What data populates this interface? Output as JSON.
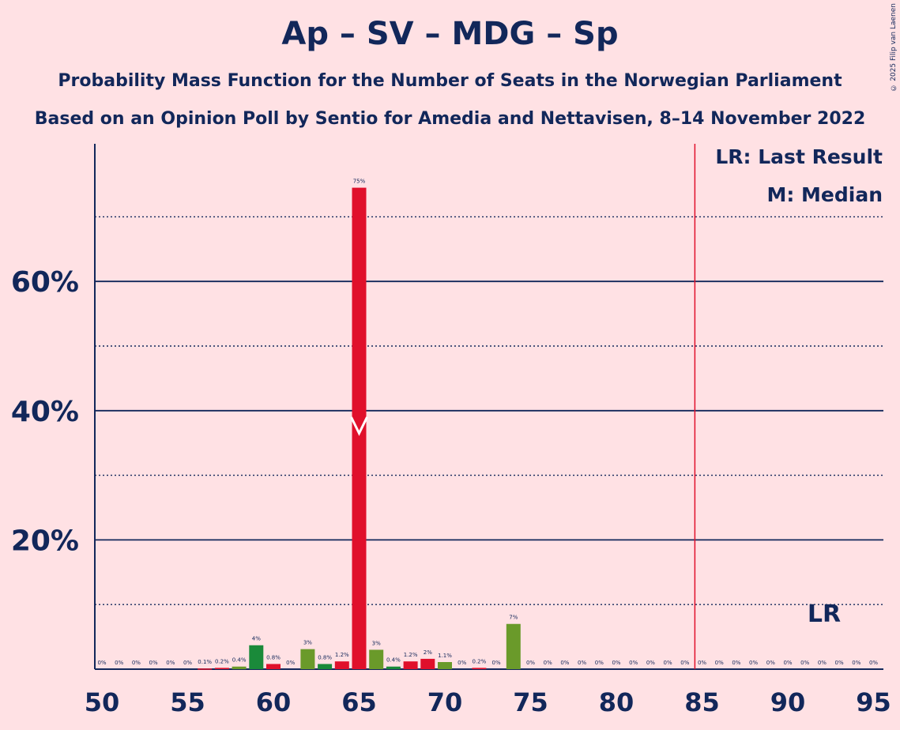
{
  "title": "Ap – SV – MDG – Sp",
  "subtitle1": "Probability Mass Function for the Number of Seats in the Norwegian Parliament",
  "subtitle2": "Based on an Opinion Poll by Sentio for Amedia and Nettavisen, 8–14 November 2022",
  "credit": "© 2025 Filip van Laenen",
  "legend": {
    "lr": "LR: Last Result",
    "m": "M: Median"
  },
  "lr_marker": "LR",
  "colors": {
    "background": "#FFE1E4",
    "text": "#12275A",
    "red": "#E0102B",
    "green": "#1A8A3A",
    "olive": "#6A9A2A",
    "navy": "#12275A"
  },
  "chart_data": {
    "type": "bar",
    "title": "Ap – SV – MDG – Sp",
    "xlabel": "",
    "ylabel": "",
    "xlim": [
      50,
      95
    ],
    "ylim": [
      0,
      80
    ],
    "x_ticks": [
      "50",
      "55",
      "60",
      "65",
      "70",
      "75",
      "80",
      "85",
      "90",
      "95"
    ],
    "y_ticks": [
      "20%",
      "40%",
      "60%"
    ],
    "median": 65,
    "last_result": 85,
    "bars": [
      {
        "x": 50,
        "value": 0,
        "label": "0%",
        "color": "red"
      },
      {
        "x": 51,
        "value": 0,
        "label": "0%",
        "color": "red"
      },
      {
        "x": 52,
        "value": 0,
        "label": "0%",
        "color": "red"
      },
      {
        "x": 53,
        "value": 0,
        "label": "0%",
        "color": "red"
      },
      {
        "x": 54,
        "value": 0,
        "label": "0%",
        "color": "red"
      },
      {
        "x": 55,
        "value": 0,
        "label": "0%",
        "color": "red"
      },
      {
        "x": 56,
        "value": 0.1,
        "label": "0.1%",
        "color": "red"
      },
      {
        "x": 57,
        "value": 0.2,
        "label": "0.2%",
        "color": "red"
      },
      {
        "x": 58,
        "value": 0.4,
        "label": "0.4%",
        "color": "olive"
      },
      {
        "x": 59,
        "value": 3.7,
        "label": "4%",
        "color": "green"
      },
      {
        "x": 60,
        "value": 0.8,
        "label": "0.8%",
        "color": "red"
      },
      {
        "x": 61,
        "value": 0,
        "label": "0%",
        "color": "red"
      },
      {
        "x": 62,
        "value": 3.1,
        "label": "3%",
        "color": "olive"
      },
      {
        "x": 63,
        "value": 0.8,
        "label": "0.8%",
        "color": "green"
      },
      {
        "x": 64,
        "value": 1.2,
        "label": "1.2%",
        "color": "red"
      },
      {
        "x": 65,
        "value": 74.5,
        "label": "75%",
        "color": "red"
      },
      {
        "x": 66,
        "value": 3.0,
        "label": "3%",
        "color": "olive"
      },
      {
        "x": 67,
        "value": 0.4,
        "label": "0.4%",
        "color": "green"
      },
      {
        "x": 68,
        "value": 1.2,
        "label": "1.2%",
        "color": "red"
      },
      {
        "x": 69,
        "value": 1.6,
        "label": "2%",
        "color": "red"
      },
      {
        "x": 70,
        "value": 1.1,
        "label": "1.1%",
        "color": "olive"
      },
      {
        "x": 71,
        "value": 0,
        "label": "0%",
        "color": "red"
      },
      {
        "x": 72,
        "value": 0.2,
        "label": "0.2%",
        "color": "red"
      },
      {
        "x": 73,
        "value": 0,
        "label": "0%",
        "color": "red"
      },
      {
        "x": 74,
        "value": 7.0,
        "label": "7%",
        "color": "olive"
      },
      {
        "x": 75,
        "value": 0,
        "label": "0%",
        "color": "red"
      },
      {
        "x": 76,
        "value": 0,
        "label": "0%",
        "color": "red"
      },
      {
        "x": 77,
        "value": 0,
        "label": "0%",
        "color": "red"
      },
      {
        "x": 78,
        "value": 0,
        "label": "0%",
        "color": "red"
      },
      {
        "x": 79,
        "value": 0,
        "label": "0%",
        "color": "red"
      },
      {
        "x": 80,
        "value": 0,
        "label": "0%",
        "color": "red"
      },
      {
        "x": 81,
        "value": 0,
        "label": "0%",
        "color": "red"
      },
      {
        "x": 82,
        "value": 0,
        "label": "0%",
        "color": "red"
      },
      {
        "x": 83,
        "value": 0,
        "label": "0%",
        "color": "red"
      },
      {
        "x": 84,
        "value": 0,
        "label": "0%",
        "color": "red"
      },
      {
        "x": 85,
        "value": 0,
        "label": "0%",
        "color": "red"
      },
      {
        "x": 86,
        "value": 0,
        "label": "0%",
        "color": "red"
      },
      {
        "x": 87,
        "value": 0,
        "label": "0%",
        "color": "red"
      },
      {
        "x": 88,
        "value": 0,
        "label": "0%",
        "color": "red"
      },
      {
        "x": 89,
        "value": 0,
        "label": "0%",
        "color": "red"
      },
      {
        "x": 90,
        "value": 0,
        "label": "0%",
        "color": "red"
      },
      {
        "x": 91,
        "value": 0,
        "label": "0%",
        "color": "red"
      },
      {
        "x": 92,
        "value": 0,
        "label": "0%",
        "color": "red"
      },
      {
        "x": 93,
        "value": 0,
        "label": "0%",
        "color": "red"
      },
      {
        "x": 94,
        "value": 0,
        "label": "0%",
        "color": "red"
      },
      {
        "x": 95,
        "value": 0,
        "label": "0%",
        "color": "red"
      }
    ]
  }
}
